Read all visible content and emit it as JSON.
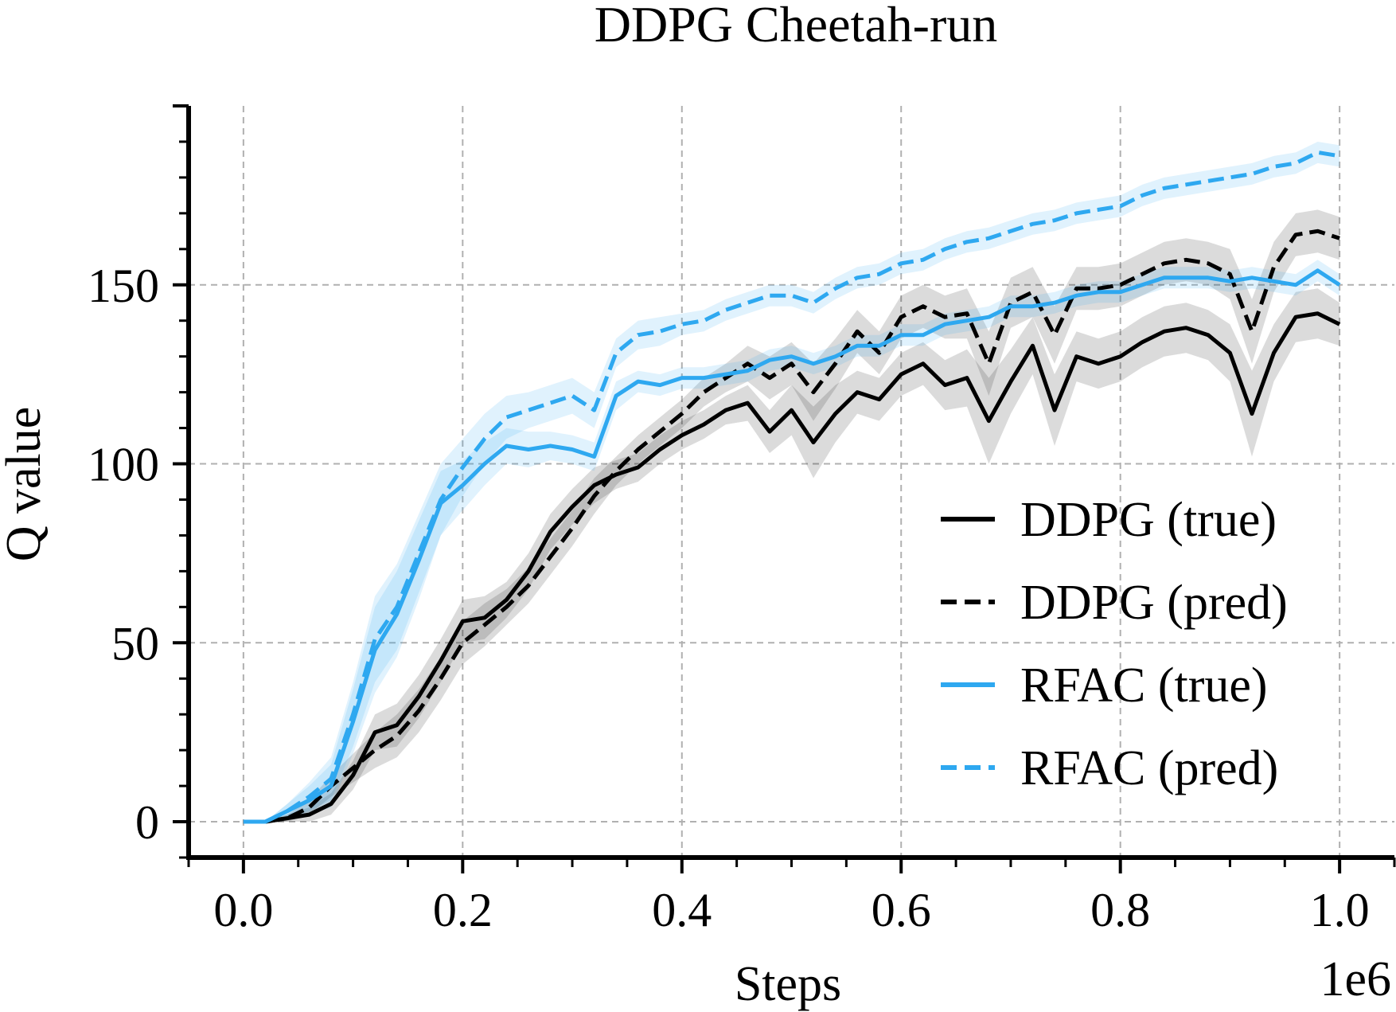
{
  "chart_data": {
    "type": "line",
    "title": "DDPG Cheetah-run",
    "xlabel": "Steps",
    "ylabel": "Q value",
    "x_offset_label": "1e6",
    "xlim": [
      -0.05,
      1.05
    ],
    "ylim": [
      -10,
      200
    ],
    "xticks": [
      0.0,
      0.2,
      0.4,
      0.6,
      0.8,
      1.0
    ],
    "xtick_labels": [
      "0.0",
      "0.2",
      "0.4",
      "0.6",
      "0.8",
      "1.0"
    ],
    "yticks": [
      0,
      50,
      100,
      150
    ],
    "ytick_labels": [
      "0",
      "50",
      "100",
      "150"
    ],
    "grid": true,
    "legend_position": "lower-right",
    "x": [
      0.0,
      0.02,
      0.04,
      0.06,
      0.08,
      0.1,
      0.12,
      0.14,
      0.16,
      0.18,
      0.2,
      0.22,
      0.24,
      0.26,
      0.28,
      0.3,
      0.32,
      0.34,
      0.36,
      0.38,
      0.4,
      0.42,
      0.44,
      0.46,
      0.48,
      0.5,
      0.52,
      0.54,
      0.56,
      0.58,
      0.6,
      0.62,
      0.64,
      0.66,
      0.68,
      0.7,
      0.72,
      0.74,
      0.76,
      0.78,
      0.8,
      0.82,
      0.84,
      0.86,
      0.88,
      0.9,
      0.92,
      0.94,
      0.96,
      0.98,
      1.0
    ],
    "series": [
      {
        "name": "DDPG (true)",
        "color": "#000000",
        "dash": "solid",
        "values": [
          0,
          0,
          1,
          2,
          5,
          13,
          25,
          27,
          35,
          45,
          56,
          57,
          62,
          70,
          81,
          88,
          94,
          97,
          99,
          104,
          108,
          111,
          115,
          117,
          109,
          115,
          106,
          114,
          120,
          118,
          125,
          128,
          122,
          124,
          112,
          123,
          133,
          115,
          130,
          128,
          130,
          134,
          137,
          138,
          136,
          131,
          114,
          131,
          141,
          142,
          139
        ],
        "band": [
          0,
          0,
          1,
          2,
          3,
          4,
          5,
          6,
          6,
          6,
          6,
          6,
          5,
          5,
          5,
          5,
          5,
          4,
          4,
          4,
          4,
          4,
          4,
          5,
          6,
          7,
          10,
          8,
          6,
          6,
          6,
          6,
          7,
          8,
          12,
          9,
          8,
          10,
          7,
          7,
          7,
          7,
          7,
          7,
          7,
          8,
          12,
          8,
          7,
          7,
          6
        ]
      },
      {
        "name": "DDPG (pred)",
        "color": "#000000",
        "dash": "dashed",
        "values": [
          0,
          0,
          1,
          4,
          10,
          15,
          20,
          24,
          31,
          40,
          50,
          55,
          60,
          66,
          74,
          82,
          91,
          98,
          104,
          109,
          114,
          120,
          124,
          128,
          124,
          128,
          120,
          128,
          137,
          131,
          141,
          144,
          141,
          142,
          128,
          145,
          148,
          136,
          149,
          149,
          150,
          153,
          156,
          157,
          156,
          153,
          137,
          155,
          164,
          165,
          163
        ],
        "band": [
          0,
          0,
          1,
          2,
          3,
          4,
          5,
          6,
          6,
          6,
          6,
          6,
          5,
          5,
          5,
          5,
          5,
          4,
          4,
          4,
          4,
          4,
          4,
          5,
          6,
          6,
          8,
          7,
          6,
          6,
          6,
          6,
          6,
          7,
          9,
          7,
          7,
          8,
          6,
          6,
          6,
          6,
          6,
          6,
          6,
          7,
          9,
          7,
          6,
          6,
          6
        ]
      },
      {
        "name": "RFAC (true)",
        "color": "#2ea8f0",
        "dash": "solid",
        "values": [
          0,
          0,
          3,
          6,
          10,
          28,
          48,
          58,
          73,
          89,
          94,
          100,
          105,
          104,
          105,
          104,
          102,
          119,
          123,
          122,
          124,
          124,
          125,
          126,
          129,
          130,
          128,
          130,
          133,
          133,
          136,
          136,
          139,
          140,
          141,
          144,
          144,
          145,
          147,
          148,
          148,
          150,
          152,
          152,
          152,
          151,
          152,
          151,
          150,
          154,
          150
        ],
        "band": [
          0,
          0,
          2,
          4,
          6,
          9,
          12,
          12,
          11,
          9,
          7,
          6,
          5,
          5,
          4,
          4,
          4,
          4,
          3,
          3,
          3,
          3,
          3,
          3,
          3,
          3,
          3,
          3,
          3,
          3,
          3,
          3,
          3,
          3,
          3,
          3,
          3,
          3,
          3,
          3,
          3,
          3,
          3,
          3,
          3,
          3,
          3,
          3,
          3,
          3,
          3
        ]
      },
      {
        "name": "RFAC (pred)",
        "color": "#2ea8f0",
        "dash": "dashed",
        "values": [
          0,
          0,
          3,
          7,
          12,
          30,
          51,
          60,
          75,
          90,
          99,
          107,
          113,
          115,
          117,
          119,
          115,
          131,
          136,
          137,
          139,
          140,
          143,
          145,
          147,
          147,
          145,
          149,
          152,
          153,
          156,
          157,
          160,
          162,
          163,
          165,
          167,
          168,
          170,
          171,
          172,
          175,
          177,
          178,
          179,
          180,
          181,
          183,
          184,
          187,
          186
        ],
        "band": [
          0,
          0,
          2,
          4,
          6,
          9,
          12,
          12,
          11,
          10,
          8,
          7,
          6,
          5,
          5,
          5,
          5,
          4,
          4,
          4,
          3,
          3,
          3,
          3,
          3,
          3,
          3,
          3,
          3,
          3,
          3,
          3,
          3,
          3,
          3,
          3,
          3,
          3,
          3,
          3,
          3,
          3,
          3,
          3,
          3,
          3,
          3,
          3,
          3,
          3,
          3
        ]
      }
    ]
  }
}
